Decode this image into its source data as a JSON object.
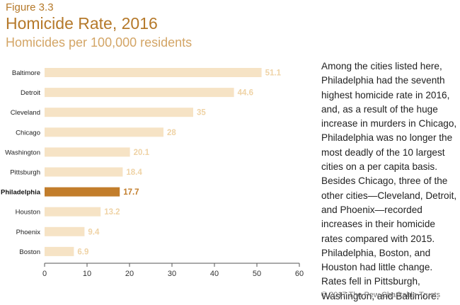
{
  "chart_data": {
    "type": "bar",
    "orientation": "horizontal",
    "figure_label": "Figure 3.3",
    "title": "Homicide Rate, 2016",
    "subtitle": "Homicides per 100,000 residents",
    "categories": [
      "Baltimore",
      "Detroit",
      "Cleveland",
      "Chicago",
      "Washington",
      "Pittsburgh",
      "Philadelphia",
      "Houston",
      "Phoenix",
      "Boston"
    ],
    "values": [
      51.1,
      44.6,
      35,
      28,
      20.1,
      18.4,
      17.7,
      13.2,
      9.4,
      6.9
    ],
    "value_labels": [
      "51.1",
      "44.6",
      "35",
      "28",
      "20.1",
      "18.4",
      "17.7",
      "13.2",
      "9.4",
      "6.9"
    ],
    "highlight": "Philadelphia",
    "xlim": [
      0,
      60
    ],
    "xticks": [
      "0",
      "10",
      "20",
      "30",
      "40",
      "50",
      "60"
    ],
    "xlabel": "",
    "ylabel": "",
    "grid": false,
    "colors": {
      "bar": "#f6e3c5",
      "bar_highlight": "#c27d2b",
      "label": "#efd3a6",
      "label_highlight": "#c27d2b"
    }
  },
  "narrative": "Among the cities listed here, Philadelphia had the seventh highest homicide rate in 2016, and, as a result of the huge increase in murders in Chicago, Philadelphia was no longer the most deadly of the 10 largest cities on a per capita basis. Besides Chicago, three of the other cities—Cleveland, Detroit, and Phoenix—recorded increases in their homicide rates compared with 2015. Philadelphia, Boston, and Houston had little change. Rates fell in Pittsburgh, Washington, and Baltimore.",
  "copyright": "© 2017 The Pew Charitable Trusts"
}
